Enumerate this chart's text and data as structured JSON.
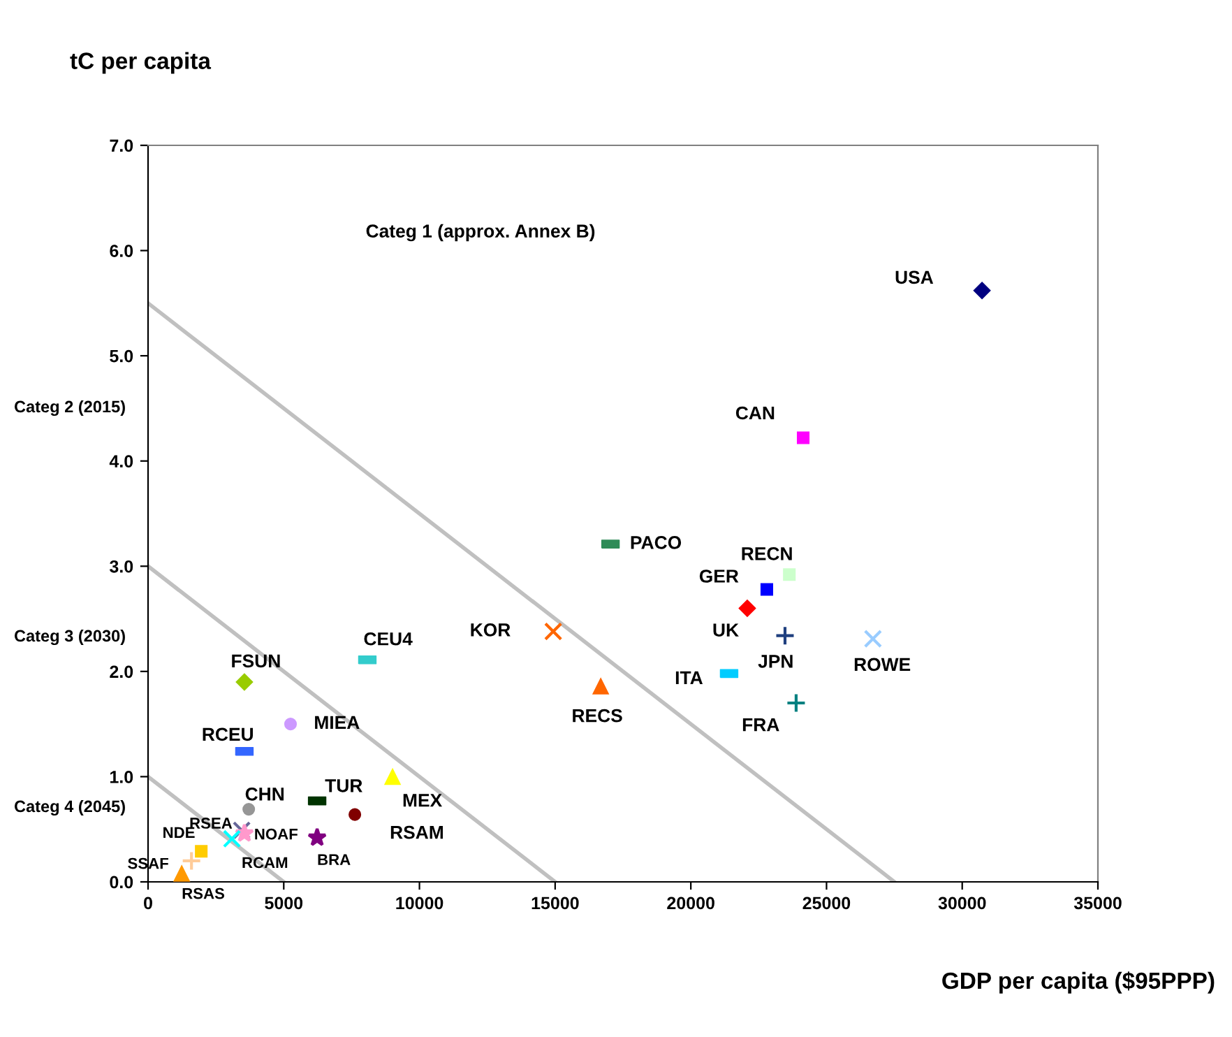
{
  "chart_data": {
    "type": "scatter",
    "xlabel": "GDP per capita ($95PPP)",
    "ylabel": "tC per capita",
    "xlim": [
      0,
      35000
    ],
    "xticks": [
      0,
      5000,
      10000,
      15000,
      20000,
      25000,
      30000,
      35000
    ],
    "ylim": [
      0,
      7
    ],
    "yticks": [
      {
        "value": 0,
        "label": "0.0"
      },
      {
        "value": 1,
        "label": "1.0"
      },
      {
        "value": 2,
        "label": "2.0"
      },
      {
        "value": 3,
        "label": "3.0"
      },
      {
        "value": 4,
        "label": "4.0"
      },
      {
        "value": 5,
        "label": "5.0"
      },
      {
        "value": 6,
        "label": "6.0"
      },
      {
        "value": 7,
        "label": "7.0"
      }
    ],
    "grid": false,
    "annotations": [
      "Categ 1 (approx. Annex B)",
      "Categ 2 (2015)",
      "Categ 3 (2030)",
      "Categ 4 (2045)"
    ],
    "series": [
      {
        "type": "line",
        "color": "#c0c0c0",
        "x": [
          0,
          27500
        ],
        "values": [
          5.5,
          0
        ],
        "marker": "none"
      },
      {
        "type": "line",
        "color": "#c0c0c0",
        "x": [
          0,
          15000
        ],
        "values": [
          3.0,
          0
        ],
        "marker": "none"
      },
      {
        "type": "line",
        "color": "#c0c0c0",
        "x": [
          0,
          5000
        ],
        "values": [
          1.0,
          0
        ],
        "marker": "none"
      },
      {
        "name": "USA",
        "color": "#000080",
        "x": [
          30730
        ],
        "values": [
          5.62
        ],
        "marker": "diamond"
      },
      {
        "name": "CAN",
        "color": "#ff00ff",
        "x": [
          24140
        ],
        "values": [
          4.22
        ],
        "marker": "square"
      },
      {
        "name": "PACO",
        "color": "#2e8b57",
        "x": [
          17040
        ],
        "values": [
          3.21
        ],
        "marker": "square"
      },
      {
        "name": "RECN",
        "color": "#ccffcc",
        "x": [
          23630
        ],
        "values": [
          2.92
        ],
        "marker": "square"
      },
      {
        "name": "GER",
        "color": "#0000ff",
        "x": [
          22800
        ],
        "values": [
          2.78
        ],
        "marker": "square"
      },
      {
        "name": "UK",
        "color": "#ff0000",
        "x": [
          22080
        ],
        "values": [
          2.6
        ],
        "marker": "diamond"
      },
      {
        "name": "JPN",
        "color": "#1f3f7f",
        "x": [
          23470
        ],
        "values": [
          2.34
        ],
        "marker": "plus"
      },
      {
        "name": "ROWE",
        "color": "#99ccff",
        "x": [
          26710
        ],
        "values": [
          2.31
        ],
        "marker": "cross"
      },
      {
        "name": "ITA",
        "color": "#00ccff",
        "x": [
          21410
        ],
        "values": [
          1.98
        ],
        "marker": "square"
      },
      {
        "name": "FRA",
        "color": "#008080",
        "x": [
          23880
        ],
        "values": [
          1.7
        ],
        "marker": "plus"
      },
      {
        "name": "KOR",
        "color": "#ff6600",
        "x": [
          14930
        ],
        "values": [
          2.38
        ],
        "marker": "cross"
      },
      {
        "name": "RECS",
        "color": "#ff6600",
        "x": [
          16680
        ],
        "values": [
          1.86
        ],
        "marker": "triangle"
      },
      {
        "name": "CEU4",
        "color": "#33cccc",
        "x": [
          8080
        ],
        "values": [
          2.11
        ],
        "marker": "square"
      },
      {
        "name": "FSUN",
        "color": "#99cc00",
        "x": [
          3550
        ],
        "values": [
          1.9
        ],
        "marker": "diamond"
      },
      {
        "name": "MIEA",
        "color": "#cc99ff",
        "x": [
          5250
        ],
        "values": [
          1.5
        ],
        "marker": "circle"
      },
      {
        "name": "RCEU",
        "color": "#3366ff",
        "x": [
          3550
        ],
        "values": [
          1.24
        ],
        "marker": "square"
      },
      {
        "name": "MEX",
        "color": "#ffff00",
        "x": [
          9010
        ],
        "values": [
          1.0
        ],
        "marker": "triangle"
      },
      {
        "name": "TUR",
        "color": "#003300",
        "x": [
          6230
        ],
        "values": [
          0.77
        ],
        "marker": "square"
      },
      {
        "name": "RSAM",
        "color": "#800000",
        "x": [
          7620
        ],
        "values": [
          0.64
        ],
        "marker": "circle"
      },
      {
        "name": "CHN",
        "color": "#969696",
        "x": [
          3710
        ],
        "values": [
          0.69
        ],
        "marker": "circle"
      },
      {
        "name": "RSEA",
        "color": "#666699",
        "x": [
          3450
        ],
        "values": [
          0.49
        ],
        "marker": "cross"
      },
      {
        "name": "NOAF",
        "color": "#ff99cc",
        "x": [
          3550
        ],
        "values": [
          0.46
        ],
        "marker": "star"
      },
      {
        "name": "RCAM",
        "color": "#00ffff",
        "x": [
          3090
        ],
        "values": [
          0.41
        ],
        "marker": "cross"
      },
      {
        "name": "BRA",
        "color": "#800080",
        "x": [
          6230
        ],
        "values": [
          0.42
        ],
        "marker": "star"
      },
      {
        "name": "NDE",
        "color": "#ffcc00",
        "x": [
          1960
        ],
        "values": [
          0.29
        ],
        "marker": "square"
      },
      {
        "name": "SSAF",
        "color": "#ffcc99",
        "x": [
          1600
        ],
        "values": [
          0.2
        ],
        "marker": "plus"
      },
      {
        "name": "RSAS",
        "color": "#ff9900",
        "x": [
          1240
        ],
        "values": [
          0.08
        ],
        "marker": "triangle"
      }
    ]
  }
}
